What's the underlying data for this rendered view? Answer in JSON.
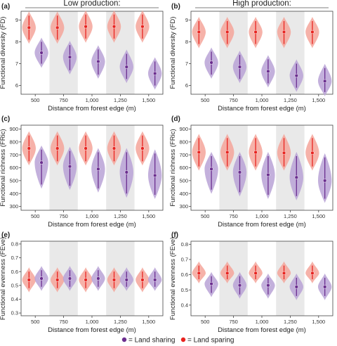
{
  "legend": {
    "items": [
      {
        "label": "= Land sharing",
        "color": "#6b2e8f"
      },
      {
        "label": "= Land sparing",
        "color": "#e8231f"
      }
    ]
  },
  "colors": {
    "sharing_point": "#6b2e8f",
    "sharing_fill": "#b9a2d6",
    "sparing_point": "#e8231f",
    "sparing_fill": "#f4a49a",
    "band": "#e9e9e9"
  },
  "chart_data": [
    {
      "panel": "(a)",
      "header": "Low production:",
      "type": "scatter",
      "xlabel": "Distance from forest edge (m)",
      "ylabel": "Functional diversity (FD)",
      "categories": [
        "500",
        "750",
        "1,000",
        "1,250",
        "1,500"
      ],
      "ylim": [
        5.6,
        9.4
      ],
      "yticks": [
        6,
        7,
        8,
        9
      ],
      "series": [
        {
          "name": "Land sparing",
          "values": [
            8.65,
            8.65,
            8.7,
            8.7,
            8.7
          ],
          "lower": [
            8.1,
            8.1,
            8.15,
            8.15,
            8.15
          ],
          "upper": [
            9.2,
            9.2,
            9.25,
            9.25,
            9.25
          ]
        },
        {
          "name": "Land sharing",
          "values": [
            7.5,
            7.3,
            7.1,
            6.85,
            6.55
          ],
          "lower": [
            7.0,
            6.7,
            6.5,
            6.3,
            6.0
          ],
          "upper": [
            8.0,
            7.85,
            7.65,
            7.45,
            7.1
          ]
        }
      ]
    },
    {
      "panel": "(b)",
      "header": "High production:",
      "type": "scatter",
      "xlabel": "Distance from forest edge (m)",
      "ylabel": "Functional diversity (FD)",
      "categories": [
        "500",
        "750",
        "1,000",
        "1,250",
        "1,500"
      ],
      "ylim": [
        5.6,
        9.4
      ],
      "yticks": [
        6,
        7,
        8,
        9
      ],
      "series": [
        {
          "name": "Land sparing",
          "values": [
            8.45,
            8.45,
            8.45,
            8.45,
            8.45
          ],
          "lower": [
            7.9,
            7.9,
            7.9,
            7.9,
            7.9
          ],
          "upper": [
            8.95,
            8.95,
            8.95,
            8.95,
            8.95
          ]
        },
        {
          "name": "Land sharing",
          "values": [
            7.05,
            6.85,
            6.65,
            6.45,
            6.2
          ],
          "lower": [
            6.5,
            6.3,
            6.1,
            5.9,
            5.7
          ],
          "upper": [
            7.55,
            7.4,
            7.2,
            7.0,
            6.8
          ]
        }
      ]
    },
    {
      "panel": "(c)",
      "header": "",
      "type": "scatter",
      "xlabel": "Distance from forest edge (m)",
      "ylabel": "Functional richness (FRic)",
      "categories": [
        "500",
        "750",
        "1,000",
        "1,250",
        "1,500"
      ],
      "ylim": [
        270,
        930
      ],
      "yticks": [
        300,
        400,
        500,
        600,
        700,
        800,
        900
      ],
      "series": [
        {
          "name": "Land sparing",
          "values": [
            750,
            750,
            750,
            750,
            750
          ],
          "lower": [
            650,
            650,
            650,
            650,
            650
          ],
          "upper": [
            850,
            850,
            850,
            850,
            850
          ]
        },
        {
          "name": "Land sharing",
          "values": [
            640,
            610,
            590,
            565,
            540
          ],
          "lower": [
            470,
            460,
            440,
            400,
            390
          ],
          "upper": [
            740,
            730,
            720,
            720,
            710
          ]
        }
      ]
    },
    {
      "panel": "(d)",
      "header": "",
      "type": "scatter",
      "xlabel": "Distance from forest edge (m)",
      "ylabel": "Functional richness (FRic)",
      "categories": [
        "500",
        "750",
        "1,000",
        "1,250",
        "1,500"
      ],
      "ylim": [
        270,
        930
      ],
      "yticks": [
        300,
        400,
        500,
        600,
        700,
        800,
        900
      ],
      "series": [
        {
          "name": "Land sparing",
          "values": [
            720,
            720,
            720,
            715,
            715
          ],
          "lower": [
            610,
            610,
            610,
            610,
            610
          ],
          "upper": [
            830,
            830,
            830,
            830,
            830
          ]
        },
        {
          "name": "Land sharing",
          "values": [
            590,
            565,
            545,
            525,
            500
          ],
          "lower": [
            430,
            410,
            390,
            380,
            360
          ],
          "upper": [
            690,
            690,
            690,
            690,
            680
          ]
        }
      ]
    },
    {
      "panel": "(e)",
      "header": "",
      "type": "scatter",
      "xlabel": "Distance from forest edge (m)",
      "ylabel": "Functional evenness (FEve)",
      "categories": [
        "500",
        "750",
        "1,000",
        "1,250",
        "1,500"
      ],
      "ylim": [
        0.28,
        0.82
      ],
      "yticks": [
        0.3,
        0.4,
        0.5,
        0.6,
        0.7,
        0.8
      ],
      "series": [
        {
          "name": "Land sparing",
          "values": [
            0.54,
            0.54,
            0.54,
            0.54,
            0.54
          ],
          "lower": [
            0.48,
            0.48,
            0.48,
            0.48,
            0.48
          ],
          "upper": [
            0.6,
            0.6,
            0.6,
            0.6,
            0.6
          ]
        },
        {
          "name": "Land sharing",
          "values": [
            0.55,
            0.55,
            0.55,
            0.54,
            0.54
          ],
          "lower": [
            0.49,
            0.49,
            0.49,
            0.49,
            0.49
          ],
          "upper": [
            0.61,
            0.61,
            0.61,
            0.6,
            0.6
          ]
        }
      ]
    },
    {
      "panel": "(f)",
      "header": "",
      "type": "scatter",
      "xlabel": "Distance from forest edge (m)",
      "ylabel": "Functional evenness (FEve)",
      "categories": [
        "500",
        "750",
        "1,000",
        "1,250",
        "1,500"
      ],
      "ylim": [
        0.33,
        0.82
      ],
      "yticks": [
        0.4,
        0.5,
        0.6,
        0.7,
        0.8
      ],
      "series": [
        {
          "name": "Land sparing",
          "values": [
            0.61,
            0.61,
            0.61,
            0.61,
            0.61
          ],
          "lower": [
            0.57,
            0.57,
            0.57,
            0.57,
            0.57
          ],
          "upper": [
            0.66,
            0.66,
            0.66,
            0.66,
            0.66
          ]
        },
        {
          "name": "Land sharing",
          "values": [
            0.54,
            0.53,
            0.53,
            0.52,
            0.52
          ],
          "lower": [
            0.48,
            0.47,
            0.47,
            0.46,
            0.46
          ],
          "upper": [
            0.59,
            0.59,
            0.58,
            0.58,
            0.58
          ]
        }
      ]
    }
  ]
}
